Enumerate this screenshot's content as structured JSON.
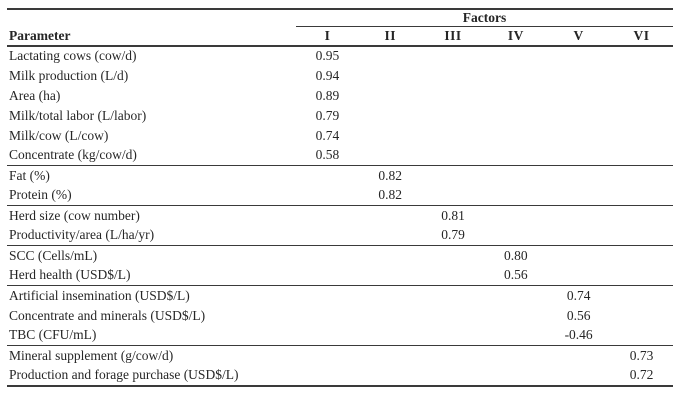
{
  "table": {
    "span_header": "Factors",
    "param_header": "Parameter",
    "factor_columns": [
      "I",
      "II",
      "III",
      "IV",
      "V",
      "VI"
    ],
    "rows": [
      {
        "parameter": "Lactating cows (cow/d)",
        "factor": "I",
        "col": 0,
        "value": "0.95",
        "group": 0
      },
      {
        "parameter": "Milk production (L/d)",
        "factor": "I",
        "col": 0,
        "value": "0.94",
        "group": 0
      },
      {
        "parameter": "Area (ha)",
        "factor": "I",
        "col": 0,
        "value": "0.89",
        "group": 0
      },
      {
        "parameter": "Milk/total labor (L/labor)",
        "factor": "I",
        "col": 0,
        "value": "0.79",
        "group": 0
      },
      {
        "parameter": "Milk/cow (L/cow)",
        "factor": "I",
        "col": 0,
        "value": "0.74",
        "group": 0
      },
      {
        "parameter": "Concentrate (kg/cow/d)",
        "factor": "I",
        "col": 0,
        "value": "0.58",
        "group": 0
      },
      {
        "parameter": "Fat (%)",
        "factor": "II",
        "col": 1,
        "value": "0.82",
        "group": 1
      },
      {
        "parameter": "Protein (%)",
        "factor": "II",
        "col": 1,
        "value": "0.82",
        "group": 1
      },
      {
        "parameter": "Herd size (cow number)",
        "factor": "III",
        "col": 2,
        "value": "0.81",
        "group": 2
      },
      {
        "parameter": "Productivity/area (L/ha/yr)",
        "factor": "III",
        "col": 2,
        "value": "0.79",
        "group": 2
      },
      {
        "parameter": "SCC (Cells/mL)",
        "factor": "IV",
        "col": 3,
        "value": "0.80",
        "group": 3
      },
      {
        "parameter": "Herd health (USD$/L)",
        "factor": "IV",
        "col": 3,
        "value": "0.56",
        "group": 3
      },
      {
        "parameter": "Artificial insemination (USD$/L)",
        "factor": "V",
        "col": 4,
        "value": "0.74",
        "group": 4
      },
      {
        "parameter": "Concentrate and minerals (USD$/L)",
        "factor": "V",
        "col": 4,
        "value": "0.56",
        "group": 4
      },
      {
        "parameter": "TBC (CFU/mL)",
        "factor": "V",
        "col": 4,
        "value": "-0.46",
        "group": 4
      },
      {
        "parameter": "Mineral supplement (g/cow/d)",
        "factor": "VI",
        "col": 5,
        "value": "0.73",
        "group": 5
      },
      {
        "parameter": "Production and forage purchase (USD$/L)",
        "factor": "VI",
        "col": 5,
        "value": "0.72",
        "group": 5
      }
    ],
    "colors": {
      "text": "#262626",
      "rule": "#3a3a3a",
      "background": "#ffffff"
    }
  }
}
